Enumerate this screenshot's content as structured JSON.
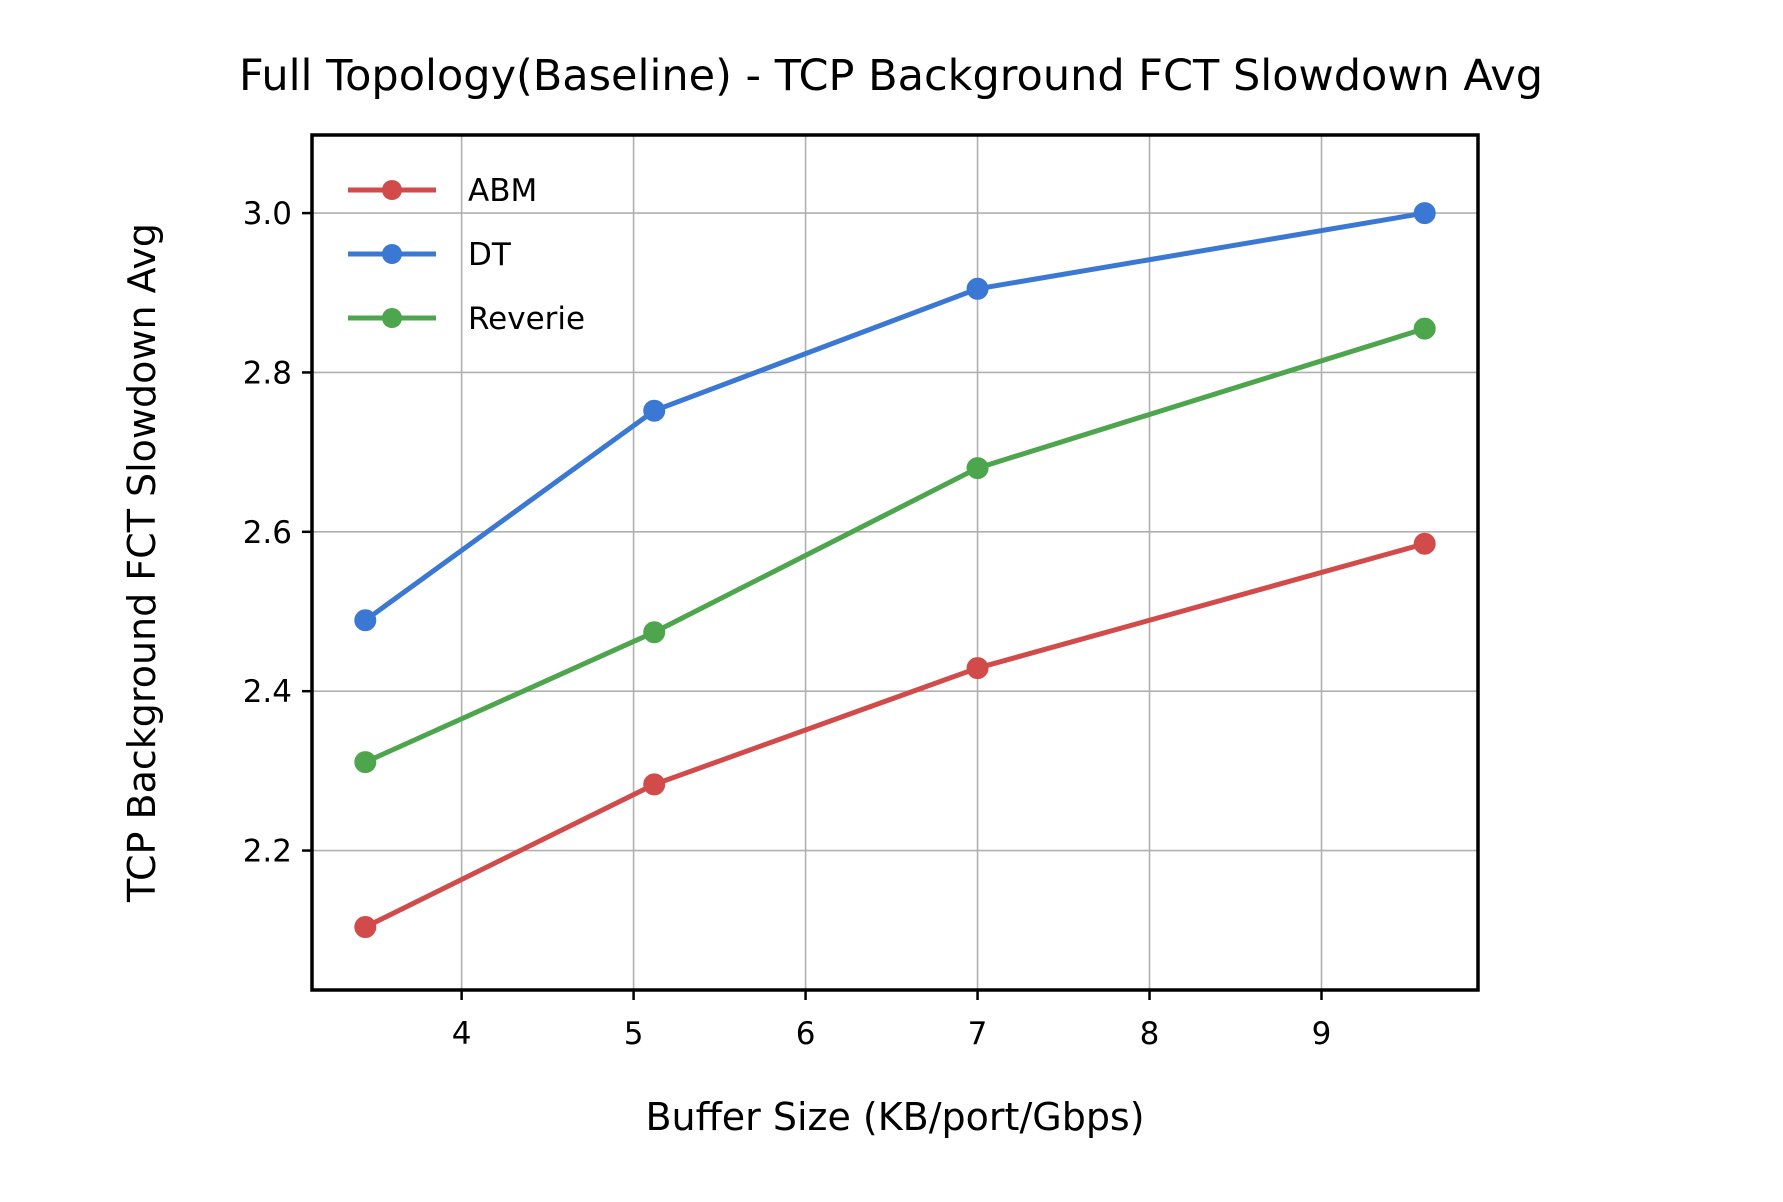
{
  "chart_data": {
    "type": "line",
    "title": "Full Topology(Baseline) - TCP Background FCT Slowdown Avg",
    "xlabel": "Buffer Size (KB/port/Gbps)",
    "ylabel": "TCP Background FCT Slowdown Avg",
    "xlim": [
      3.13,
      9.91
    ],
    "ylim": [
      2.025,
      3.098
    ],
    "xticks": [
      4,
      5,
      6,
      7,
      8,
      9
    ],
    "yticks": [
      2.2,
      2.4,
      2.6,
      2.8,
      3.0
    ],
    "xtick_labels": [
      "4",
      "5",
      "6",
      "7",
      "8",
      "9"
    ],
    "ytick_labels": [
      "2.2",
      "2.4",
      "2.6",
      "2.8",
      "3.0"
    ],
    "grid": true,
    "legend_position": "top-left",
    "x": [
      3.44,
      5.12,
      7.0,
      9.6
    ],
    "series": [
      {
        "name": "ABM",
        "color": "#d14b4b",
        "values": [
          2.104,
          2.283,
          2.429,
          2.585
        ]
      },
      {
        "name": "DT",
        "color": "#3a78d4",
        "values": [
          2.489,
          2.752,
          2.905,
          3.0
        ]
      },
      {
        "name": "Reverie",
        "color": "#4da54d",
        "values": [
          2.311,
          2.474,
          2.68,
          2.855
        ]
      }
    ]
  }
}
